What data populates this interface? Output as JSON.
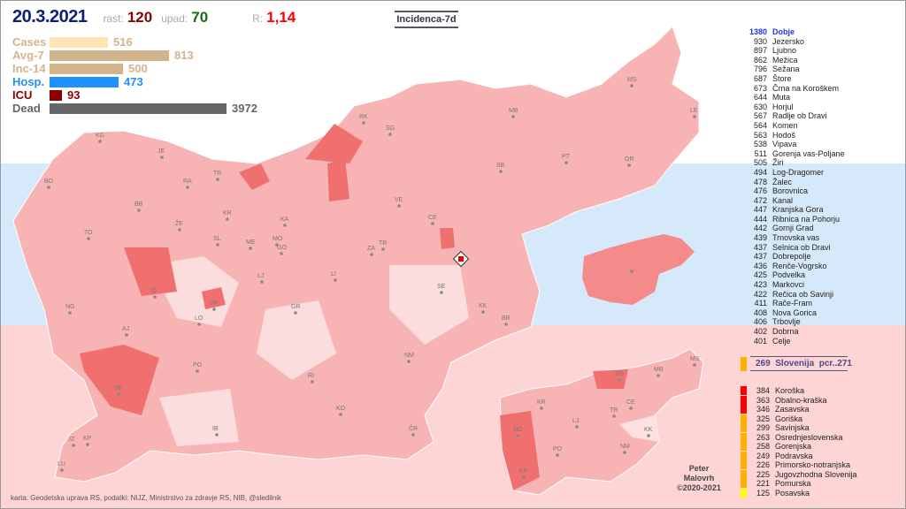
{
  "header": {
    "date": "20.3.2021",
    "rast_label": "rast:",
    "rast": "120",
    "upad_label": "upad:",
    "upad": "70",
    "r_label": "R:",
    "r": "1,14",
    "title": "Incidenca-7d"
  },
  "stats": [
    {
      "label": "Cases",
      "value": "516",
      "color": "#ffe4b5",
      "text_color": "#d2b48c"
    },
    {
      "label": "Avg-7",
      "value": "813",
      "color": "#d2b48c",
      "text_color": "#d2b48c"
    },
    {
      "label": "Inc-14",
      "value": "500",
      "color": "#d2b48c",
      "text_color": "#d2b48c"
    },
    {
      "label": "Hosp.",
      "value": "473",
      "color": "#2090ff",
      "text_color": "#2090ff"
    },
    {
      "label": "ICU",
      "value": "93",
      "color": "#8b0000",
      "text_color": "#8b0000"
    },
    {
      "label": "Dead",
      "value": "3972",
      "color": "#666666",
      "text_color": "#666666"
    }
  ],
  "municipalities": [
    {
      "v": "1380",
      "n": "Dobje"
    },
    {
      "v": "930",
      "n": "Jezersko"
    },
    {
      "v": "897",
      "n": "Ljubno"
    },
    {
      "v": "862",
      "n": "Mežica"
    },
    {
      "v": "796",
      "n": "Sežana"
    },
    {
      "v": "687",
      "n": "Štore"
    },
    {
      "v": "673",
      "n": "Črna na Koroškem"
    },
    {
      "v": "644",
      "n": "Muta"
    },
    {
      "v": "630",
      "n": "Horjul"
    },
    {
      "v": "567",
      "n": "Radlje ob Dravi"
    },
    {
      "v": "564",
      "n": "Komen"
    },
    {
      "v": "563",
      "n": "Hodoš"
    },
    {
      "v": "538",
      "n": "Vipava"
    },
    {
      "v": "511",
      "n": "Gorenja vas-Poljane"
    },
    {
      "v": "505",
      "n": "Žiri"
    },
    {
      "v": "494",
      "n": "Log-Dragomer"
    },
    {
      "v": "478",
      "n": "Žalec"
    },
    {
      "v": "476",
      "n": "Borovnica"
    },
    {
      "v": "472",
      "n": "Kanal"
    },
    {
      "v": "447",
      "n": "Kranjska Gora"
    },
    {
      "v": "444",
      "n": "Ribnica na Pohorju"
    },
    {
      "v": "442",
      "n": "Gornji Grad"
    },
    {
      "v": "439",
      "n": "Trnovska vas"
    },
    {
      "v": "437",
      "n": "Selnica ob Dravi"
    },
    {
      "v": "437",
      "n": "Dobrepolje"
    },
    {
      "v": "436",
      "n": "Renče-Vogrsko"
    },
    {
      "v": "425",
      "n": "Podvelka"
    },
    {
      "v": "423",
      "n": "Markovci"
    },
    {
      "v": "422",
      "n": "Rečica ob Savinji"
    },
    {
      "v": "411",
      "n": "Rače-Fram"
    },
    {
      "v": "408",
      "n": "Nova Gorica"
    },
    {
      "v": "406",
      "n": "Trbovlje"
    },
    {
      "v": "402",
      "n": "Dobrna"
    },
    {
      "v": "401",
      "n": "Celje"
    }
  ],
  "slovenia": {
    "value": "269",
    "label": "Slovenija",
    "pcr": "pcr..271",
    "color": "#ffb000"
  },
  "regions": [
    {
      "v": "384",
      "n": "Koroška",
      "c": "#ff0000"
    },
    {
      "v": "363",
      "n": "Obalno-kraška",
      "c": "#ff0000"
    },
    {
      "v": "346",
      "n": "Zasavska",
      "c": "#ff0000"
    },
    {
      "v": "325",
      "n": "Goriška",
      "c": "#ffb000"
    },
    {
      "v": "299",
      "n": "Savinjska",
      "c": "#ffb000"
    },
    {
      "v": "263",
      "n": "Osrednjeslovenska",
      "c": "#ffb000"
    },
    {
      "v": "258",
      "n": "Gorenjska",
      "c": "#ffb000"
    },
    {
      "v": "249",
      "n": "Podravska",
      "c": "#ffb000"
    },
    {
      "v": "226",
      "n": "Primorsko-notranjska",
      "c": "#ffb000"
    },
    {
      "v": "225",
      "n": "Jugovzhodna Slovenija",
      "c": "#ffb000"
    },
    {
      "v": "221",
      "n": "Pomurska",
      "c": "#ffb000"
    },
    {
      "v": "125",
      "n": "Posavska",
      "c": "#ffff00"
    }
  ],
  "map_labels": [
    "KG",
    "JE",
    "RA",
    "TR",
    "BO",
    "BB",
    "ŽE",
    "KR",
    "KA",
    "SL",
    "ME",
    "MO",
    "GO",
    "LJ",
    "TO",
    "ID",
    "VR",
    "LO",
    "NG",
    "AJ",
    "GR",
    "PO",
    "RI",
    "KO",
    "IB",
    "NM",
    "ČR",
    "SE",
    "KK",
    "BR",
    "LI",
    "ZA",
    "TR",
    "CE",
    "VE",
    "SG",
    "RK",
    "MB",
    "SB",
    "PT",
    "OR",
    "MS",
    "LE",
    "SE",
    "IZ",
    "KP",
    "LU"
  ],
  "region_labels": [
    "MS",
    "SG",
    "MB",
    "KR",
    "CE",
    "LJ",
    "TR",
    "NG",
    "KK",
    "PO",
    "NM",
    "KP"
  ],
  "credit": {
    "line1": "Peter",
    "line2": "Malovrh",
    "line3": "©2020-2021"
  },
  "footer": "karta: Geodetska uprava RS,  podatki: NIJZ, Ministrstvo za zdravje RS, NIB, @sledilnik"
}
